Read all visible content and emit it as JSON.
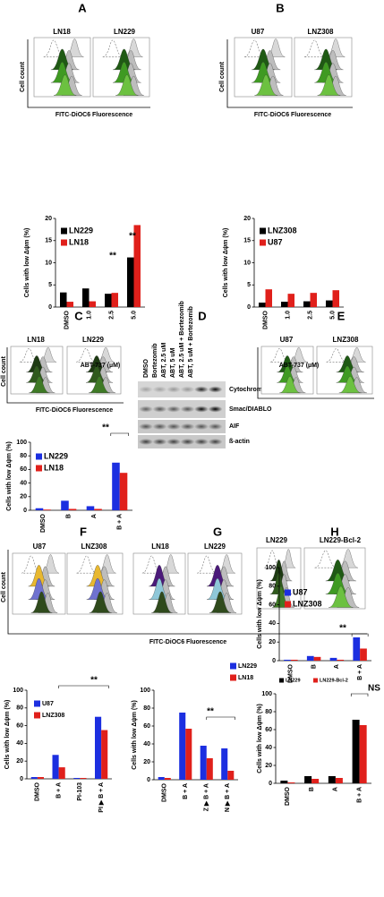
{
  "figure": {
    "panels": [
      "A",
      "B",
      "C",
      "D",
      "E",
      "F",
      "G",
      "H"
    ],
    "flow": [
      {
        "samples": [
          "LN18",
          "LN229"
        ],
        "y_label": "Cell count",
        "x_label": "FITC-DiOC6 Fluorescence"
      },
      {
        "samples": [
          "U87",
          "LNZ308"
        ],
        "y_label": "Cell count",
        "x_label": "FITC-DiOC6 Fluorescence"
      },
      {
        "samples": [
          "LN18",
          "LN229"
        ],
        "y_label": "Cell count",
        "x_label": "FITC-DiOC6 Fluorescence"
      },
      {
        "samples": [
          "U87",
          "LNZ308"
        ]
      },
      {
        "samples": [
          "U87",
          "LNZ308",
          "LN18",
          "LN229",
          "LN229",
          "LN229-Bcl-2"
        ],
        "y_label": "Cell count",
        "x_label": "FITC-DiOC6 Fluorescence"
      }
    ],
    "blot": {
      "lanes": [
        "DMSO",
        "Bortezomib",
        "ABT, 2.5 uM",
        "ABT, 5 uM",
        "ABT, 2.5 uM + Bortezomib",
        "ABT, 5 uM + Bortezomib"
      ],
      "proteins": [
        "Cytochrome c",
        "Smac/DIABLO",
        "AIF",
        "ß-actin"
      ]
    }
  },
  "chart_data": [
    {
      "type": "bar",
      "y_label": "Cells with low Δψm (%)",
      "x_label": "ABT-737 (µM)",
      "categories": [
        "DMSO",
        "1.0",
        "2.5",
        "5.0"
      ],
      "series": [
        {
          "name": "LN229",
          "color": "#000000",
          "values": [
            3.3,
            4.2,
            3.0,
            11.2
          ]
        },
        {
          "name": "LN18",
          "color": "#e0201b",
          "values": [
            1.2,
            1.3,
            3.2,
            18.5
          ]
        }
      ],
      "ylim": [
        0,
        20
      ],
      "yticks": [
        0,
        5,
        10,
        15,
        20
      ],
      "annotations": [
        "**",
        "**"
      ]
    },
    {
      "type": "bar",
      "y_label": "Cells with low Δψm (%)",
      "x_label": "ABT-737 (µM)",
      "categories": [
        "DMSO",
        "1.0",
        "2.5",
        "5.0"
      ],
      "series": [
        {
          "name": "LNZ308",
          "color": "#000000",
          "values": [
            1.0,
            1.2,
            1.3,
            1.5
          ]
        },
        {
          "name": "U87",
          "color": "#e0201b",
          "values": [
            4.0,
            3.0,
            3.2,
            3.8
          ]
        }
      ],
      "ylim": [
        0,
        20
      ],
      "yticks": [
        0,
        5,
        10,
        15,
        20
      ],
      "annotations": []
    },
    {
      "type": "bar",
      "y_label": "Cells with low Δψm (%)",
      "categories": [
        "DMSO",
        "B",
        "A",
        "B + A"
      ],
      "series": [
        {
          "name": "LN229",
          "color": "#1c2fe0",
          "values": [
            3,
            14,
            6,
            70
          ]
        },
        {
          "name": "LN18",
          "color": "#e0201b",
          "values": [
            1,
            2,
            2,
            55
          ]
        }
      ],
      "ylim": [
        0,
        100
      ],
      "yticks": [
        0,
        20,
        40,
        60,
        80,
        100
      ],
      "annotations": [
        "**"
      ]
    },
    {
      "type": "bar",
      "y_label": "Cells with low Δψm (%)",
      "categories": [
        "DMSO",
        "B",
        "A",
        "B + A"
      ],
      "series": [
        {
          "name": "U87",
          "color": "#1c2fe0",
          "values": [
            1,
            5,
            3,
            25
          ]
        },
        {
          "name": "LNZ308",
          "color": "#e0201b",
          "values": [
            1,
            4,
            1,
            13
          ]
        }
      ],
      "ylim": [
        0,
        100
      ],
      "yticks": [
        0,
        20,
        40,
        60,
        80,
        100
      ],
      "annotations": [
        "**"
      ]
    },
    {
      "type": "bar",
      "y_label": "Cells with low Δψm (%)",
      "categories": [
        "DMSO",
        "B + A",
        "PI-103",
        "PI ▶ B + A"
      ],
      "series": [
        {
          "name": "U87",
          "color": "#1c2fe0",
          "values": [
            2,
            27,
            1,
            70
          ]
        },
        {
          "name": "LNZ308",
          "color": "#e0201b",
          "values": [
            2,
            13,
            1,
            55
          ]
        }
      ],
      "ylim": [
        0,
        100
      ],
      "yticks": [
        0,
        20,
        40,
        60,
        80,
        100
      ],
      "annotations": [
        "**"
      ]
    },
    {
      "type": "bar",
      "y_label": "Cells with low Δψm (%)",
      "categories": [
        "DMSO",
        "B + A",
        "Z ▶ B + A",
        "N ▶ B + A"
      ],
      "series": [
        {
          "name": "LN229",
          "color": "#1c2fe0",
          "values": [
            3,
            75,
            38,
            35
          ]
        },
        {
          "name": "LN18",
          "color": "#e0201b",
          "values": [
            2,
            57,
            24,
            10
          ]
        }
      ],
      "ylim": [
        0,
        100
      ],
      "yticks": [
        0,
        20,
        40,
        60,
        80,
        100
      ],
      "annotations": [
        "**"
      ]
    },
    {
      "type": "bar",
      "y_label": "Cells with low Δψm (%)",
      "categories": [
        "DMSO",
        "B",
        "A",
        "B + A"
      ],
      "series": [
        {
          "name": "LN229",
          "color": "#000000",
          "values": [
            3,
            8,
            8,
            71
          ]
        },
        {
          "name": "LN229-Bcl-2",
          "color": "#e0201b",
          "values": [
            1,
            5,
            6,
            65
          ]
        }
      ],
      "ylim": [
        0,
        100
      ],
      "yticks": [
        0,
        20,
        40,
        60,
        80,
        100
      ],
      "annotations": [
        "NS"
      ]
    }
  ]
}
